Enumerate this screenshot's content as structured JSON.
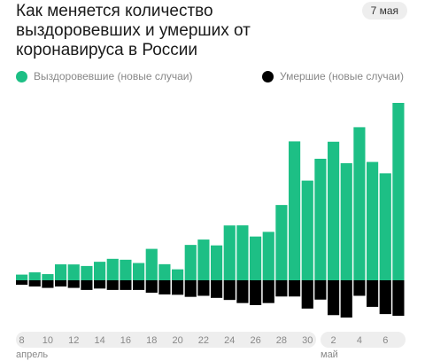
{
  "header": {
    "title": "Как меняется количество выздоровевших и умерших от коронавируса в России",
    "date": "7 мая"
  },
  "legend": [
    {
      "label": "Выздоровевшие (новые случаи)",
      "color": "#1dbf85"
    },
    {
      "label": "Умершие (новые случаи)",
      "color": "#000000"
    }
  ],
  "months": {
    "april": "апрель",
    "may": "май"
  },
  "chart_data": {
    "type": "bar",
    "title": "Как меняется количество выздоровевших и умерших от коронавируса в России",
    "categories": [
      "8",
      "9",
      "10",
      "11",
      "12",
      "13",
      "14",
      "15",
      "16",
      "17",
      "18",
      "19",
      "20",
      "21",
      "22",
      "23",
      "24",
      "25",
      "26",
      "27",
      "28",
      "29",
      "30",
      "1",
      "2",
      "3",
      "4",
      "5",
      "6",
      "7"
    ],
    "tick_labels": [
      "8",
      "10",
      "12",
      "14",
      "16",
      "18",
      "20",
      "22",
      "24",
      "26",
      "28",
      "30",
      "2",
      "4",
      "6"
    ],
    "series": [
      {
        "name": "Выздоровевшие (новые случаи)",
        "color": "#1dbf85",
        "values": [
          120,
          167,
          130,
          336,
          334,
          301,
          390,
          452,
          433,
          364,
          662,
          339,
          231,
          745,
          858,
          735,
          1155,
          1157,
          922,
          1020,
          1586,
          2926,
          2100,
          2560,
          2919,
          2466,
          3225,
          2493,
          2254,
          3737
        ]
      },
      {
        "name": "Умершие (новые случаи)",
        "color": "#000000",
        "values": [
          13,
          18,
          22,
          18,
          22,
          28,
          24,
          28,
          28,
          28,
          36,
          41,
          42,
          48,
          45,
          51,
          57,
          66,
          72,
          66,
          47,
          47,
          82,
          56,
          101,
          108,
          45,
          77,
          98,
          103
        ]
      }
    ],
    "ylim_positive": [
      0,
      3737
    ],
    "ylim_negative": [
      0,
      108
    ]
  }
}
